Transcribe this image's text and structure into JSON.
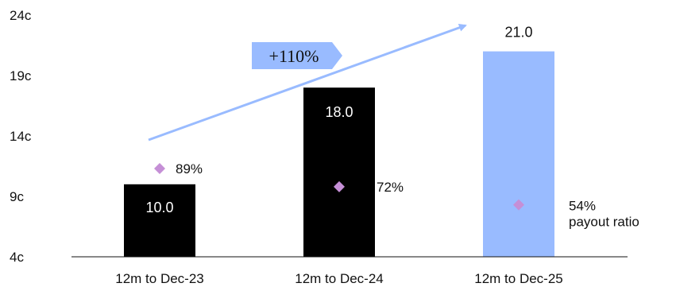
{
  "chart_data": {
    "type": "bar",
    "categories": [
      "12m to Dec-23",
      "12m to Dec-24",
      "12m to Dec-25"
    ],
    "values": [
      10.0,
      18.0,
      21.0
    ],
    "value_labels": [
      "10.0",
      "18.0",
      "21.0"
    ],
    "bar_colors": [
      "#000000",
      "#000000",
      "#99bbff"
    ],
    "value_label_colors": [
      "#ffffff",
      "#ffffff",
      "#111111"
    ],
    "ylim": [
      4,
      24
    ],
    "yticks": [
      4,
      9,
      14,
      19,
      24
    ],
    "ytick_labels": [
      "4c",
      "9c",
      "14c",
      "19c",
      "24c"
    ],
    "title": "",
    "xlabel": "",
    "ylabel": "",
    "payout_ratio": {
      "values": [
        11.3,
        9.8,
        8.3
      ],
      "labels": [
        "89%",
        "72%",
        "54%"
      ],
      "series_label": "payout ratio",
      "marker_color": "#c58fd6"
    },
    "growth_callout": {
      "label": "+110%",
      "arrow_color": "#99bbff",
      "box_color": "#99bbff"
    }
  }
}
